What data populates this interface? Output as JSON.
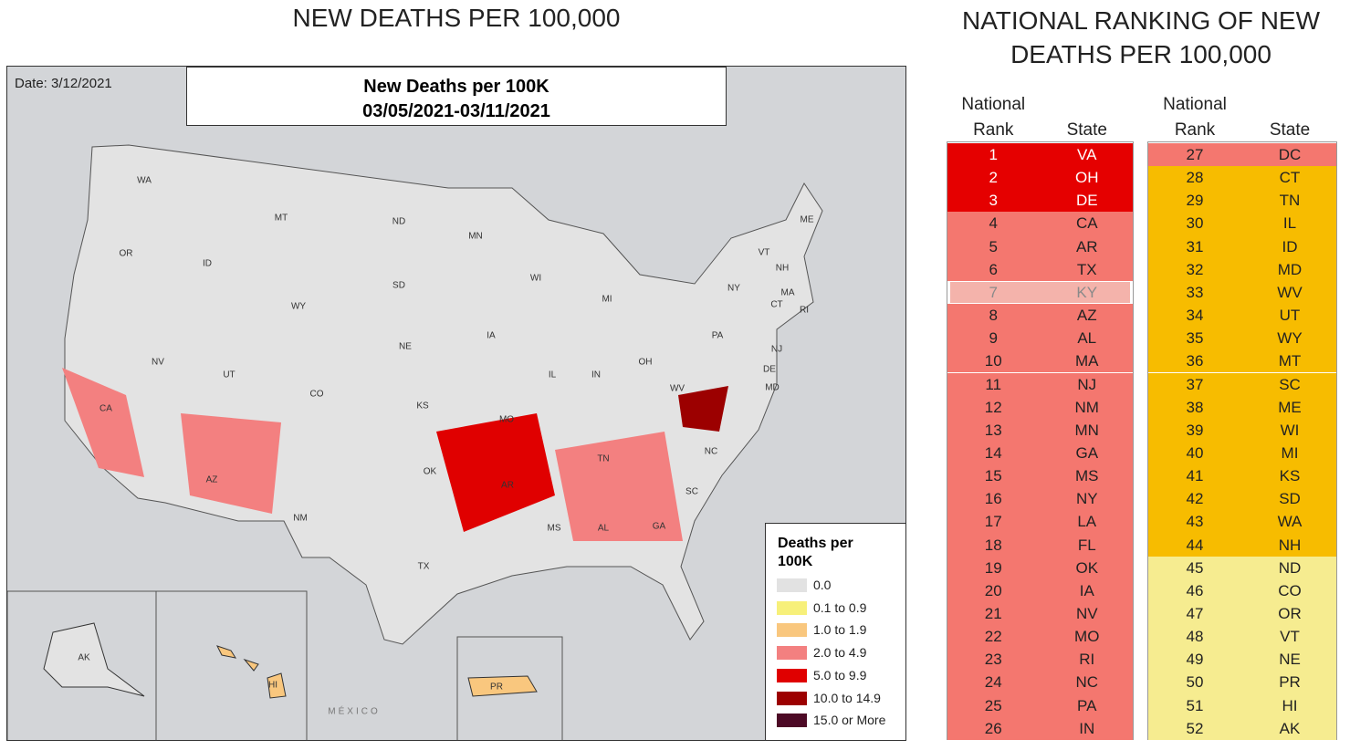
{
  "map_panel": {
    "title": "NEW DEATHS PER 100,000",
    "date": "Date: 3/12/2021",
    "map_title": "New Deaths per 100K",
    "map_subtitle": "03/05/2021-03/11/2021",
    "legend": {
      "title": "Deaths per 100K",
      "items": [
        {
          "label": "0.0",
          "color": "#e2e2e2"
        },
        {
          "label": "0.1 to 0.9",
          "color": "#f7f07a"
        },
        {
          "label": "1.0 to 1.9",
          "color": "#f9c77e"
        },
        {
          "label": "2.0 to 4.9",
          "color": "#f38080"
        },
        {
          "label": "5.0 to 9.9",
          "color": "#e00000"
        },
        {
          "label": "10.0 to 14.9",
          "color": "#9c0000"
        },
        {
          "label": "15.0 or More",
          "color": "#4d0a26"
        }
      ]
    },
    "labels": [
      "WA",
      "OR",
      "MT",
      "ID",
      "WY",
      "ND",
      "SD",
      "NE",
      "NV",
      "UT",
      "CO",
      "CA",
      "AZ",
      "NM",
      "KS",
      "OK",
      "TX",
      "MN",
      "IA",
      "MO",
      "AR",
      "WI",
      "MI",
      "IL",
      "IN",
      "OH",
      "WV",
      "TN",
      "MS",
      "AL",
      "GA",
      "SC",
      "NC",
      "PA",
      "NY",
      "VT",
      "NH",
      "ME",
      "MA",
      "CT",
      "RI",
      "NJ",
      "DE",
      "MD",
      "AK",
      "HI",
      "PR",
      "MÉXICO"
    ]
  },
  "ranking_panel": {
    "title": "NATIONAL RANKING OF NEW DEATHS PER 100,000",
    "headers": [
      "National Rank",
      "State"
    ],
    "rows": [
      {
        "rank": 1,
        "state": "VA",
        "fill": "#e50000"
      },
      {
        "rank": 2,
        "state": "OH",
        "fill": "#e50000"
      },
      {
        "rank": 3,
        "state": "DE",
        "fill": "#e50000"
      },
      {
        "rank": 4,
        "state": "CA",
        "fill": "#f4776f"
      },
      {
        "rank": 5,
        "state": "AR",
        "fill": "#f4776f"
      },
      {
        "rank": 6,
        "state": "TX",
        "fill": "#f4776f"
      },
      {
        "rank": 7,
        "state": "KY",
        "fill": "#f4b3ab",
        "selected": true
      },
      {
        "rank": 8,
        "state": "AZ",
        "fill": "#f4776f"
      },
      {
        "rank": 9,
        "state": "AL",
        "fill": "#f4776f"
      },
      {
        "rank": 10,
        "state": "MA",
        "fill": "#f4776f"
      },
      {
        "rank": 11,
        "state": "NJ",
        "fill": "#f4776f"
      },
      {
        "rank": 12,
        "state": "NM",
        "fill": "#f4776f"
      },
      {
        "rank": 13,
        "state": "MN",
        "fill": "#f4776f"
      },
      {
        "rank": 14,
        "state": "GA",
        "fill": "#f4776f"
      },
      {
        "rank": 15,
        "state": "MS",
        "fill": "#f4776f"
      },
      {
        "rank": 16,
        "state": "NY",
        "fill": "#f4776f"
      },
      {
        "rank": 17,
        "state": "LA",
        "fill": "#f4776f"
      },
      {
        "rank": 18,
        "state": "FL",
        "fill": "#f4776f"
      },
      {
        "rank": 19,
        "state": "OK",
        "fill": "#f4776f"
      },
      {
        "rank": 20,
        "state": "IA",
        "fill": "#f4776f"
      },
      {
        "rank": 21,
        "state": "NV",
        "fill": "#f4776f"
      },
      {
        "rank": 22,
        "state": "MO",
        "fill": "#f4776f"
      },
      {
        "rank": 23,
        "state": "RI",
        "fill": "#f4776f"
      },
      {
        "rank": 24,
        "state": "NC",
        "fill": "#f4776f"
      },
      {
        "rank": 25,
        "state": "PA",
        "fill": "#f4776f"
      },
      {
        "rank": 26,
        "state": "IN",
        "fill": "#f4776f"
      },
      {
        "rank": 27,
        "state": "DC",
        "fill": "#f4776f"
      },
      {
        "rank": 28,
        "state": "CT",
        "fill": "#f7bc00"
      },
      {
        "rank": 29,
        "state": "TN",
        "fill": "#f7bc00"
      },
      {
        "rank": 30,
        "state": "IL",
        "fill": "#f7bc00"
      },
      {
        "rank": 31,
        "state": "ID",
        "fill": "#f7bc00"
      },
      {
        "rank": 32,
        "state": "MD",
        "fill": "#f7bc00"
      },
      {
        "rank": 33,
        "state": "WV",
        "fill": "#f7bc00"
      },
      {
        "rank": 34,
        "state": "UT",
        "fill": "#f7bc00"
      },
      {
        "rank": 35,
        "state": "WY",
        "fill": "#f7bc00"
      },
      {
        "rank": 36,
        "state": "MT",
        "fill": "#f7bc00"
      },
      {
        "rank": 37,
        "state": "SC",
        "fill": "#f7bc00"
      },
      {
        "rank": 38,
        "state": "ME",
        "fill": "#f7bc00"
      },
      {
        "rank": 39,
        "state": "WI",
        "fill": "#f7bc00"
      },
      {
        "rank": 40,
        "state": "MI",
        "fill": "#f7bc00"
      },
      {
        "rank": 41,
        "state": "KS",
        "fill": "#f7bc00"
      },
      {
        "rank": 42,
        "state": "SD",
        "fill": "#f7bc00"
      },
      {
        "rank": 43,
        "state": "WA",
        "fill": "#f7bc00"
      },
      {
        "rank": 44,
        "state": "NH",
        "fill": "#f7bc00"
      },
      {
        "rank": 45,
        "state": "ND",
        "fill": "#f6ec90"
      },
      {
        "rank": 46,
        "state": "CO",
        "fill": "#f6ec90"
      },
      {
        "rank": 47,
        "state": "OR",
        "fill": "#f6ec90"
      },
      {
        "rank": 48,
        "state": "VT",
        "fill": "#f6ec90"
      },
      {
        "rank": 49,
        "state": "NE",
        "fill": "#f6ec90"
      },
      {
        "rank": 50,
        "state": "PR",
        "fill": "#f6ec90"
      },
      {
        "rank": 51,
        "state": "HI",
        "fill": "#f6ec90"
      },
      {
        "rank": 52,
        "state": "AK",
        "fill": "#f6ec90"
      }
    ]
  }
}
